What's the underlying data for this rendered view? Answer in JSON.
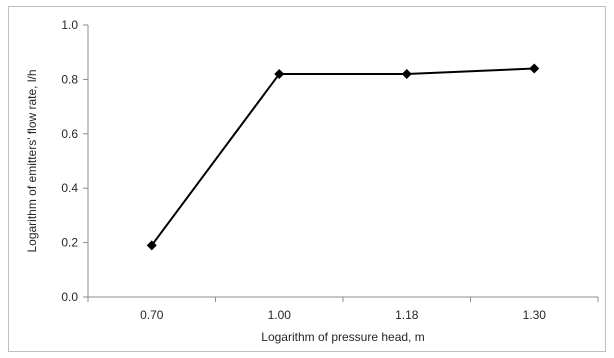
{
  "chart_data": {
    "type": "line",
    "categories": [
      "0.70",
      "1.00",
      "1.18",
      "1.30"
    ],
    "series": [
      {
        "values": [
          0.19,
          0.82,
          0.82,
          0.84
        ]
      }
    ],
    "xlabel": "Logarithm of pressure head, m",
    "ylabel": "Logarithm of emitters' flow rate, l/h",
    "ylim": [
      0,
      1.0
    ],
    "yticks": [
      "0.0",
      "0.2",
      "0.4",
      "0.6",
      "0.8",
      "1.0"
    ],
    "grid": false,
    "legend": "none",
    "marker": "diamond",
    "line_color": "#000000"
  }
}
